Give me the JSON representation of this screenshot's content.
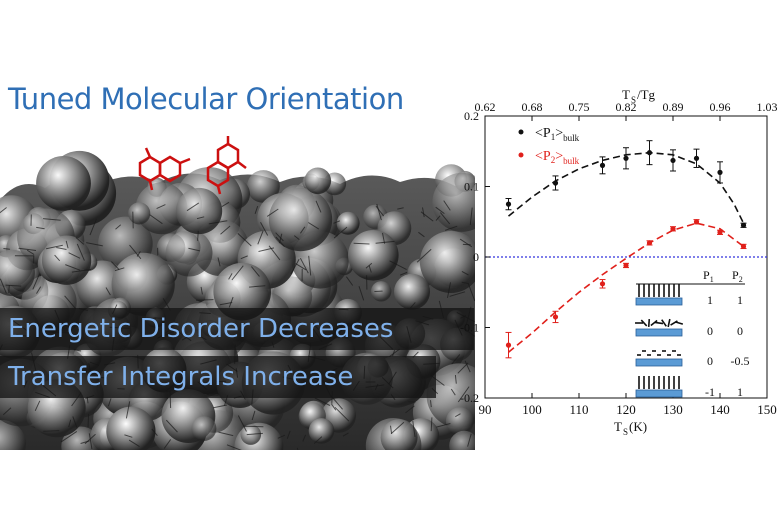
{
  "headline": "Tuned Molecular Orientation",
  "banners": [
    "Energetic Disorder Decreases",
    "Transfer Integrals Increase"
  ],
  "colors": {
    "headline": "#2f6fb5",
    "banner_text": "#7fb0ea",
    "p1": "#111111",
    "p2": "#e0201b",
    "zero_line": "#3333dd"
  },
  "chart_data": {
    "type": "scatter",
    "xlabel_main": "T",
    "xlabel_sub": "S",
    "xlabel_unit": "(K)",
    "top_axis_label_main": "T",
    "top_axis_label_sub": "S",
    "top_axis_label_tail": "/Tg",
    "xlim": [
      90,
      150
    ],
    "ylim": [
      -0.2,
      0.2
    ],
    "x_ticks": [
      90,
      100,
      110,
      120,
      130,
      140,
      150
    ],
    "y_ticks": [
      "-0.2",
      "-0.1",
      "0",
      "0.1",
      "0.2"
    ],
    "top_ticks": [
      "0.62",
      "0.68",
      "0.75",
      "0.82",
      "0.89",
      "0.96",
      "1.03"
    ],
    "grid": false,
    "zero_line": true,
    "legend_position": "top-left",
    "series": [
      {
        "name_main": "<P",
        "name_sub_index": "1",
        "name_close": ">",
        "name_sub": "bulk",
        "x": [
          95,
          105,
          115,
          120,
          125,
          130,
          135,
          140,
          145
        ],
        "y": [
          0.075,
          0.105,
          0.13,
          0.14,
          0.148,
          0.137,
          0.14,
          0.12,
          0.045
        ],
        "err": [
          0.008,
          0.01,
          0.012,
          0.015,
          0.017,
          0.015,
          0.013,
          0.015,
          0.003
        ]
      },
      {
        "name_main": "<P",
        "name_sub_index": "2",
        "name_close": ">",
        "name_sub": "bulk",
        "x": [
          95,
          105,
          115,
          120,
          125,
          130,
          135,
          140,
          145
        ],
        "y": [
          -0.125,
          -0.085,
          -0.038,
          -0.012,
          0.02,
          0.04,
          0.05,
          0.035,
          0.015
        ],
        "err": [
          0.018,
          0.008,
          0.006,
          0.003,
          0.003,
          0.003,
          0.003,
          0.003,
          0.003
        ]
      }
    ],
    "fit_lines": [
      {
        "x": [
          95,
          100,
          105,
          110,
          115,
          120,
          125,
          130,
          135,
          140,
          143,
          145
        ],
        "y": [
          0.058,
          0.085,
          0.108,
          0.125,
          0.137,
          0.145,
          0.148,
          0.145,
          0.132,
          0.105,
          0.075,
          0.048
        ]
      },
      {
        "x": [
          95,
          100,
          105,
          110,
          115,
          120,
          125,
          130,
          135,
          140,
          145
        ],
        "y": [
          -0.135,
          -0.108,
          -0.078,
          -0.05,
          -0.025,
          -0.002,
          0.02,
          0.038,
          0.048,
          0.04,
          0.015
        ]
      }
    ],
    "inset_table": {
      "headers": [
        {
          "main": "P",
          "sub": "1"
        },
        {
          "main": "P",
          "sub": "2"
        }
      ],
      "rows": [
        {
          "p1": "1",
          "p2": "1"
        },
        {
          "p1": "0",
          "p2": "0"
        },
        {
          "p1": "0",
          "p2": "-0.5"
        },
        {
          "p1": "-1",
          "p2": "1"
        }
      ]
    }
  }
}
